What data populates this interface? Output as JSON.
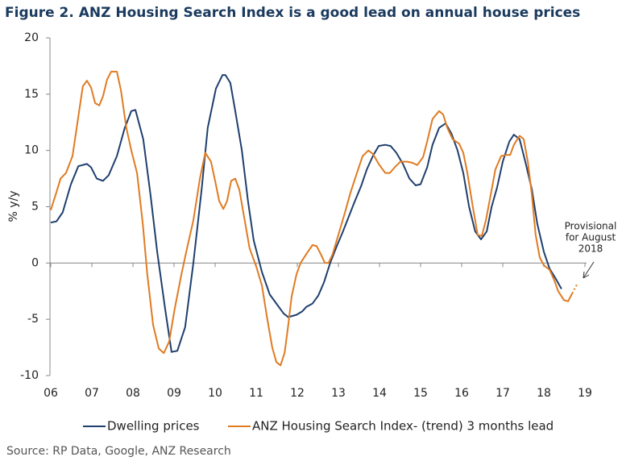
{
  "chart_data": {
    "type": "line",
    "title": "Figure 2. ANZ Housing Search Index is a good lead on annual house prices",
    "y_label": "% y/y",
    "source": "Source: RP Data, Google, ANZ Research",
    "annotation": [
      "Provisional",
      "for August",
      "2018"
    ],
    "xlim": [
      2006,
      2019
    ],
    "xticks": [
      {
        "value": 2006,
        "label": "06"
      },
      {
        "value": 2007,
        "label": "07"
      },
      {
        "value": 2008,
        "label": "08"
      },
      {
        "value": 2009,
        "label": "09"
      },
      {
        "value": 2010,
        "label": "10"
      },
      {
        "value": 2011,
        "label": "11"
      },
      {
        "value": 2012,
        "label": "12"
      },
      {
        "value": 2013,
        "label": "13"
      },
      {
        "value": 2014,
        "label": "14"
      },
      {
        "value": 2015,
        "label": "15"
      },
      {
        "value": 2016,
        "label": "16"
      },
      {
        "value": 2017,
        "label": "17"
      },
      {
        "value": 2018,
        "label": "18"
      },
      {
        "value": 2019,
        "label": "19"
      }
    ],
    "ylim": [
      -10,
      20
    ],
    "yticks": [
      -10,
      -5,
      0,
      5,
      10,
      15,
      20
    ],
    "grid": false,
    "legend": "bottom",
    "series": [
      {
        "name": "Dwelling prices",
        "color": "#1f3f6e",
        "x": [
          2006.0,
          2006.14,
          2006.29,
          2006.49,
          2006.67,
          2006.88,
          2006.98,
          2007.12,
          2007.27,
          2007.41,
          2007.61,
          2007.8,
          2007.96,
          2008.06,
          2008.25,
          2008.43,
          2008.59,
          2008.78,
          2008.94,
          2009.08,
          2009.27,
          2009.47,
          2009.67,
          2009.82,
          2010.02,
          2010.18,
          2010.25,
          2010.37,
          2010.49,
          2010.65,
          2010.8,
          2010.94,
          2011.14,
          2011.33,
          2011.53,
          2011.67,
          2011.78,
          2011.98,
          2012.12,
          2012.22,
          2012.37,
          2012.51,
          2012.65,
          2012.8,
          2012.96,
          2013.1,
          2013.24,
          2013.39,
          2013.55,
          2013.69,
          2013.84,
          2013.98,
          2014.14,
          2014.27,
          2014.41,
          2014.57,
          2014.73,
          2014.88,
          2015.0,
          2015.16,
          2015.29,
          2015.45,
          2015.61,
          2015.75,
          2015.9,
          2016.04,
          2016.18,
          2016.33,
          2016.47,
          2016.61,
          2016.73,
          2016.86,
          2017.0,
          2017.16,
          2017.27,
          2017.41,
          2017.55,
          2017.71,
          2017.84,
          2018.0,
          2018.14,
          2018.29,
          2018.43
        ],
        "values": [
          3.6,
          3.7,
          4.5,
          7,
          8.6,
          8.8,
          8.5,
          7.5,
          7.3,
          7.8,
          9.5,
          12,
          13.5,
          13.6,
          11,
          6,
          1,
          -4,
          -7.9,
          -7.8,
          -5.7,
          0,
          6.5,
          12,
          15.5,
          16.7,
          16.7,
          16,
          13.5,
          10,
          5.5,
          2,
          -0.8,
          -2.8,
          -3.8,
          -4.5,
          -4.8,
          -4.6,
          -4.3,
          -3.9,
          -3.6,
          -2.9,
          -1.7,
          0,
          1.5,
          2.7,
          4,
          5.4,
          6.8,
          8.3,
          9.5,
          10.4,
          10.5,
          10.4,
          9.8,
          8.8,
          7.5,
          6.9,
          7,
          8.5,
          10.5,
          12,
          12.4,
          11.5,
          10,
          8,
          5,
          2.8,
          2.1,
          2.8,
          5,
          6.7,
          9,
          10.8,
          11.4,
          11,
          9,
          6.5,
          3.5,
          1,
          -0.5,
          -1.4,
          -2.3
        ]
      },
      {
        "name": "ANZ Housing Search Index- (trend) 3 months lead",
        "color": "#e07b22",
        "x": [
          2006.0,
          2006.14,
          2006.24,
          2006.37,
          2006.53,
          2006.67,
          2006.78,
          2006.88,
          2006.98,
          2007.08,
          2007.18,
          2007.27,
          2007.37,
          2007.47,
          2007.61,
          2007.71,
          2007.84,
          2007.96,
          2008.1,
          2008.24,
          2008.35,
          2008.49,
          2008.63,
          2008.75,
          2008.88,
          2009.02,
          2009.18,
          2009.31,
          2009.47,
          2009.63,
          2009.76,
          2009.9,
          2010.0,
          2010.1,
          2010.2,
          2010.29,
          2010.39,
          2010.49,
          2010.59,
          2010.71,
          2010.84,
          2011.0,
          2011.14,
          2011.27,
          2011.39,
          2011.49,
          2011.59,
          2011.69,
          2011.78,
          2011.86,
          2011.98,
          2012.08,
          2012.22,
          2012.37,
          2012.47,
          2012.57,
          2012.67,
          2012.76,
          2012.86,
          2013.0,
          2013.16,
          2013.29,
          2013.45,
          2013.59,
          2013.73,
          2013.84,
          2013.98,
          2014.14,
          2014.25,
          2014.37,
          2014.51,
          2014.67,
          2014.8,
          2014.92,
          2015.06,
          2015.16,
          2015.29,
          2015.45,
          2015.55,
          2015.65,
          2015.78,
          2015.94,
          2016.04,
          2016.14,
          2016.27,
          2016.39,
          2016.49,
          2016.59,
          2016.73,
          2016.82,
          2016.96,
          2017.08,
          2017.18,
          2017.27,
          2017.41,
          2017.51,
          2017.61,
          2017.71,
          2017.8,
          2017.9,
          2018.0,
          2018.14,
          2018.25,
          2018.35,
          2018.49,
          2018.59,
          2018.69
        ],
        "values": [
          4.7,
          6.3,
          7.5,
          8,
          9.5,
          13,
          15.7,
          16.2,
          15.6,
          14.2,
          14,
          14.8,
          16.3,
          17,
          17,
          15.3,
          12,
          10,
          8,
          3.5,
          -1,
          -5.5,
          -7.6,
          -8,
          -7,
          -4,
          -1,
          1.2,
          3.8,
          7.5,
          9.8,
          9,
          7.3,
          5.5,
          4.8,
          5.5,
          7.3,
          7.5,
          6.5,
          4,
          1.3,
          -0.3,
          -2,
          -5,
          -7.5,
          -8.8,
          -9.1,
          -8,
          -5.5,
          -3,
          -1,
          0,
          0.8,
          1.6,
          1.5,
          0.8,
          0,
          0,
          0.8,
          2.5,
          4.5,
          6.2,
          8,
          9.5,
          10,
          9.7,
          8.8,
          8,
          8,
          8.5,
          9,
          9,
          8.9,
          8.7,
          9.4,
          10.8,
          12.8,
          13.5,
          13.2,
          12,
          11,
          10.6,
          9.8,
          8,
          5,
          2.5,
          2.4,
          3.8,
          6.5,
          8.3,
          9.5,
          9.6,
          9.6,
          10.5,
          11.3,
          11,
          9,
          6,
          2.5,
          0.5,
          -0.2,
          -0.6,
          -1.5,
          -2.5,
          -3.3,
          -3.4,
          -2.7
        ]
      }
    ],
    "provisional": {
      "color": "#e07b22",
      "x": [
        2018.69,
        2018.82
      ],
      "values": [
        -2.7,
        -1.8
      ]
    }
  }
}
